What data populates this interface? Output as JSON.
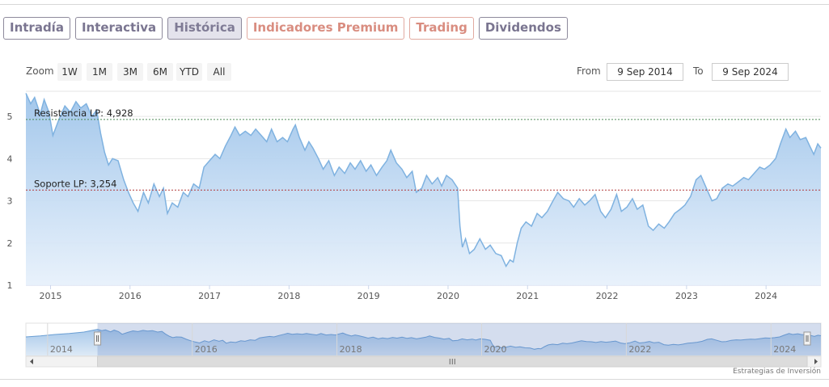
{
  "tabs": [
    {
      "label": "Intradía",
      "state": "normal"
    },
    {
      "label": "Interactiva",
      "state": "normal"
    },
    {
      "label": "Histórica",
      "state": "active"
    },
    {
      "label": "Indicadores Premium",
      "state": "premium"
    },
    {
      "label": "Trading",
      "state": "premium"
    },
    {
      "label": "Dividendos",
      "state": "normal"
    }
  ],
  "range_selector": {
    "zoom_label": "Zoom",
    "buttons": [
      "1W",
      "1M",
      "3M",
      "6M",
      "YTD",
      "All"
    ],
    "from_label": "From",
    "from_value": "9 Sep 2014",
    "to_label": "To",
    "to_value": "9 Sep 2024"
  },
  "credits": "Estrategias de Inversión",
  "colors": {
    "line": "#7fb2e0",
    "area_top": "#9ec4ea",
    "resistance": "#4e8a57",
    "support": "#b23a3a",
    "tab_active_bg": "#e4e3ec",
    "tab_premium": "#d98d80"
  },
  "chart_data": {
    "type": "area",
    "title": "",
    "xlabel": "",
    "ylabel": "",
    "ylim": [
      1,
      5.5
    ],
    "yticks": [
      1,
      2,
      3,
      4,
      5
    ],
    "xticks": [
      "2015",
      "2016",
      "2017",
      "2018",
      "2019",
      "2020",
      "2021",
      "2022",
      "2023",
      "2024"
    ],
    "xlim": [
      2014.69,
      2024.69
    ],
    "grid": true,
    "legend": "none",
    "series": [
      {
        "values": [
          [
            2014.69,
            5.55
          ],
          [
            2014.75,
            5.3
          ],
          [
            2014.8,
            5.45
          ],
          [
            2014.87,
            5.05
          ],
          [
            2014.92,
            5.4
          ],
          [
            2014.98,
            5.1
          ],
          [
            2015.03,
            4.55
          ],
          [
            2015.1,
            4.9
          ],
          [
            2015.18,
            5.25
          ],
          [
            2015.25,
            5.1
          ],
          [
            2015.32,
            5.35
          ],
          [
            2015.38,
            5.2
          ],
          [
            2015.45,
            5.3
          ],
          [
            2015.52,
            5.0
          ],
          [
            2015.58,
            5.15
          ],
          [
            2015.63,
            4.6
          ],
          [
            2015.68,
            4.15
          ],
          [
            2015.73,
            3.85
          ],
          [
            2015.78,
            4.0
          ],
          [
            2015.85,
            3.95
          ],
          [
            2015.92,
            3.5
          ],
          [
            2015.98,
            3.2
          ],
          [
            2016.04,
            2.95
          ],
          [
            2016.1,
            2.75
          ],
          [
            2016.17,
            3.2
          ],
          [
            2016.23,
            2.95
          ],
          [
            2016.3,
            3.4
          ],
          [
            2016.37,
            3.1
          ],
          [
            2016.42,
            3.3
          ],
          [
            2016.47,
            2.7
          ],
          [
            2016.53,
            2.95
          ],
          [
            2016.6,
            2.85
          ],
          [
            2016.67,
            3.2
          ],
          [
            2016.73,
            3.1
          ],
          [
            2016.8,
            3.4
          ],
          [
            2016.87,
            3.3
          ],
          [
            2016.93,
            3.8
          ],
          [
            2017.0,
            3.95
          ],
          [
            2017.07,
            4.1
          ],
          [
            2017.13,
            4.0
          ],
          [
            2017.2,
            4.3
          ],
          [
            2017.27,
            4.55
          ],
          [
            2017.32,
            4.75
          ],
          [
            2017.38,
            4.55
          ],
          [
            2017.45,
            4.65
          ],
          [
            2017.52,
            4.55
          ],
          [
            2017.58,
            4.7
          ],
          [
            2017.65,
            4.55
          ],
          [
            2017.72,
            4.4
          ],
          [
            2017.78,
            4.7
          ],
          [
            2017.85,
            4.4
          ],
          [
            2017.92,
            4.5
          ],
          [
            2017.98,
            4.4
          ],
          [
            2018.05,
            4.7
          ],
          [
            2018.08,
            4.8
          ],
          [
            2018.13,
            4.5
          ],
          [
            2018.2,
            4.2
          ],
          [
            2018.25,
            4.4
          ],
          [
            2018.3,
            4.25
          ],
          [
            2018.37,
            4.0
          ],
          [
            2018.43,
            3.75
          ],
          [
            2018.5,
            3.95
          ],
          [
            2018.57,
            3.6
          ],
          [
            2018.63,
            3.8
          ],
          [
            2018.7,
            3.65
          ],
          [
            2018.77,
            3.9
          ],
          [
            2018.83,
            3.75
          ],
          [
            2018.9,
            3.95
          ],
          [
            2018.97,
            3.7
          ],
          [
            2019.03,
            3.85
          ],
          [
            2019.1,
            3.6
          ],
          [
            2019.17,
            3.8
          ],
          [
            2019.23,
            3.95
          ],
          [
            2019.28,
            4.2
          ],
          [
            2019.35,
            3.9
          ],
          [
            2019.42,
            3.75
          ],
          [
            2019.48,
            3.55
          ],
          [
            2019.55,
            3.7
          ],
          [
            2019.6,
            3.2
          ],
          [
            2019.67,
            3.3
          ],
          [
            2019.73,
            3.6
          ],
          [
            2019.8,
            3.4
          ],
          [
            2019.87,
            3.55
          ],
          [
            2019.92,
            3.35
          ],
          [
            2019.98,
            3.6
          ],
          [
            2020.05,
            3.5
          ],
          [
            2020.12,
            3.3
          ],
          [
            2020.15,
            2.4
          ],
          [
            2020.18,
            1.9
          ],
          [
            2020.22,
            2.1
          ],
          [
            2020.27,
            1.75
          ],
          [
            2020.33,
            1.85
          ],
          [
            2020.4,
            2.1
          ],
          [
            2020.47,
            1.85
          ],
          [
            2020.53,
            1.95
          ],
          [
            2020.6,
            1.75
          ],
          [
            2020.67,
            1.7
          ],
          [
            2020.73,
            1.45
          ],
          [
            2020.78,
            1.6
          ],
          [
            2020.82,
            1.55
          ],
          [
            2020.87,
            2.0
          ],
          [
            2020.92,
            2.35
          ],
          [
            2020.98,
            2.5
          ],
          [
            2021.05,
            2.4
          ],
          [
            2021.12,
            2.7
          ],
          [
            2021.18,
            2.6
          ],
          [
            2021.25,
            2.75
          ],
          [
            2021.32,
            3.0
          ],
          [
            2021.38,
            3.2
          ],
          [
            2021.45,
            3.05
          ],
          [
            2021.52,
            3.0
          ],
          [
            2021.58,
            2.85
          ],
          [
            2021.65,
            3.05
          ],
          [
            2021.72,
            2.9
          ],
          [
            2021.78,
            3.0
          ],
          [
            2021.85,
            3.15
          ],
          [
            2021.92,
            2.75
          ],
          [
            2021.98,
            2.6
          ],
          [
            2022.05,
            2.8
          ],
          [
            2022.12,
            3.15
          ],
          [
            2022.18,
            2.75
          ],
          [
            2022.25,
            2.85
          ],
          [
            2022.32,
            3.05
          ],
          [
            2022.38,
            2.8
          ],
          [
            2022.45,
            2.9
          ],
          [
            2022.52,
            2.4
          ],
          [
            2022.58,
            2.3
          ],
          [
            2022.65,
            2.45
          ],
          [
            2022.72,
            2.35
          ],
          [
            2022.78,
            2.5
          ],
          [
            2022.85,
            2.7
          ],
          [
            2022.92,
            2.8
          ],
          [
            2022.98,
            2.9
          ],
          [
            2023.05,
            3.1
          ],
          [
            2023.12,
            3.5
          ],
          [
            2023.18,
            3.6
          ],
          [
            2023.25,
            3.3
          ],
          [
            2023.32,
            3.0
          ],
          [
            2023.38,
            3.05
          ],
          [
            2023.45,
            3.3
          ],
          [
            2023.52,
            3.4
          ],
          [
            2023.58,
            3.35
          ],
          [
            2023.65,
            3.45
          ],
          [
            2023.72,
            3.55
          ],
          [
            2023.78,
            3.5
          ],
          [
            2023.85,
            3.65
          ],
          [
            2023.92,
            3.8
          ],
          [
            2023.98,
            3.75
          ],
          [
            2024.05,
            3.85
          ],
          [
            2024.12,
            4.0
          ],
          [
            2024.18,
            4.35
          ],
          [
            2024.25,
            4.7
          ],
          [
            2024.3,
            4.5
          ],
          [
            2024.37,
            4.65
          ],
          [
            2024.43,
            4.45
          ],
          [
            2024.5,
            4.5
          ],
          [
            2024.55,
            4.3
          ],
          [
            2024.6,
            4.1
          ],
          [
            2024.65,
            4.35
          ],
          [
            2024.69,
            4.25
          ]
        ]
      }
    ],
    "reference_lines": [
      {
        "label": "Resistencia LP: 4,928",
        "value": 4.928,
        "style": "dashed",
        "color": "#4e8a57"
      },
      {
        "label": "Soporte LP: 3,254",
        "value": 3.254,
        "style": "dashed",
        "color": "#b23a3a"
      }
    ],
    "navigator": {
      "xticks": [
        "2014",
        "2016",
        "2018",
        "2020",
        "2022",
        "2024"
      ]
    }
  }
}
